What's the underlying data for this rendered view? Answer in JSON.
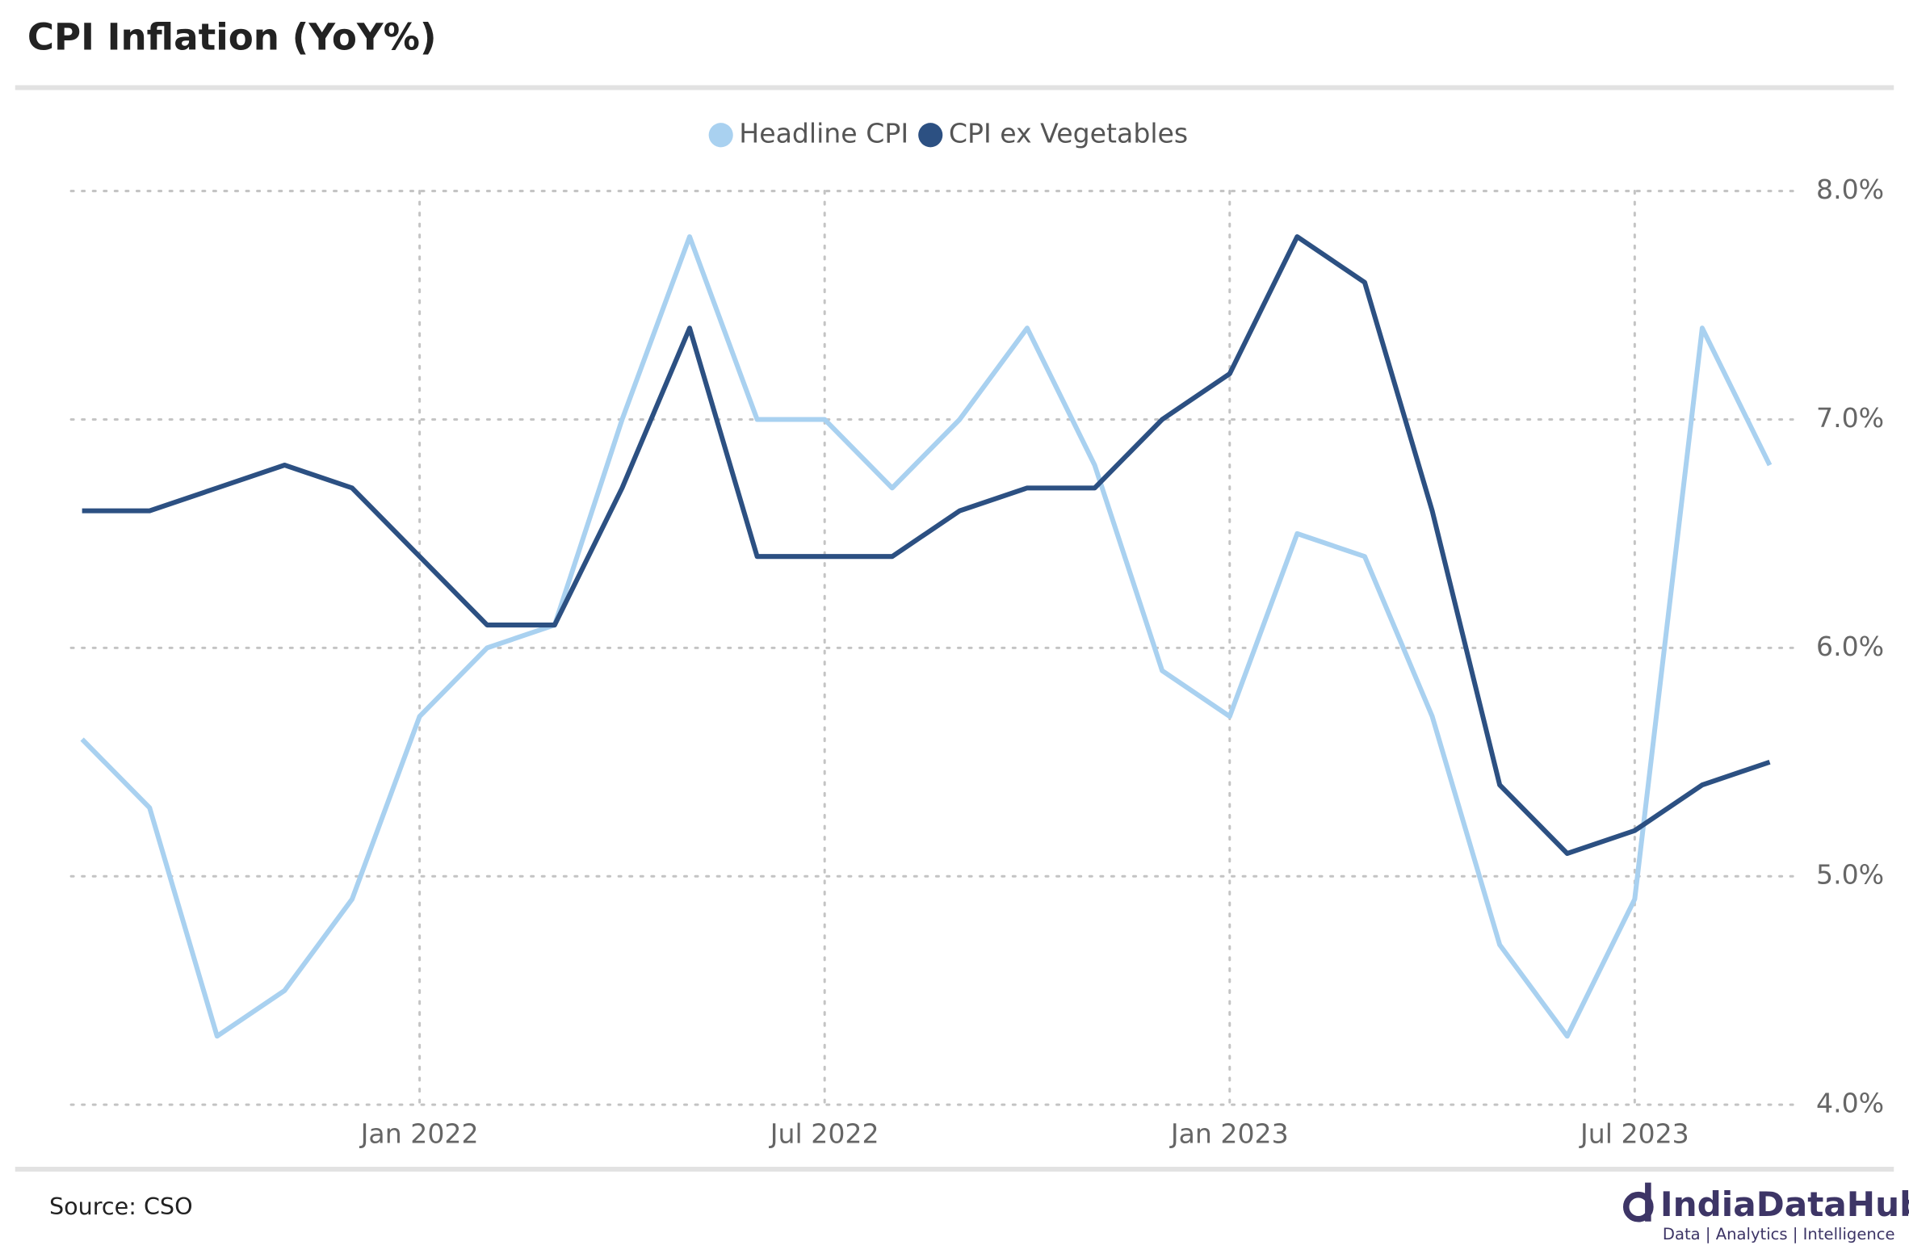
{
  "chart_data": {
    "type": "line",
    "title": "CPI Inflation (YoY%)",
    "source": "Source: CSO",
    "brand": "IndiaDataHub",
    "brand_tagline": "Data | Analytics | Intelligence",
    "x": [
      "2021-08",
      "2021-09",
      "2021-10",
      "2021-11",
      "2021-12",
      "2022-01",
      "2022-02",
      "2022-03",
      "2022-04",
      "2022-05",
      "2022-06",
      "2022-07",
      "2022-08",
      "2022-09",
      "2022-10",
      "2022-11",
      "2022-12",
      "2023-01",
      "2023-02",
      "2023-03",
      "2023-04",
      "2023-05",
      "2023-06",
      "2023-07",
      "2023-08",
      "2023-09"
    ],
    "series": [
      {
        "name": "Headline CPI",
        "color": "#a9d1f0",
        "values": [
          5.6,
          5.3,
          4.3,
          4.5,
          4.9,
          5.7,
          6.0,
          6.1,
          7.0,
          7.8,
          7.0,
          7.0,
          6.7,
          7.0,
          7.4,
          6.8,
          5.9,
          5.7,
          6.5,
          6.4,
          5.7,
          4.7,
          4.3,
          4.9,
          7.4,
          6.8
        ]
      },
      {
        "name": "CPI ex Vegetables",
        "color": "#2c5082",
        "values": [
          6.6,
          6.6,
          6.7,
          6.8,
          6.7,
          6.4,
          6.1,
          6.1,
          6.7,
          7.4,
          6.4,
          6.4,
          6.4,
          6.6,
          6.7,
          6.7,
          7.0,
          7.2,
          7.8,
          7.6,
          6.6,
          5.4,
          5.1,
          5.2,
          5.4,
          5.5
        ]
      }
    ],
    "xticks": [
      {
        "value": "2022-01",
        "label": "Jan 2022"
      },
      {
        "value": "2022-07",
        "label": "Jul 2022"
      },
      {
        "value": "2023-01",
        "label": "Jan 2023"
      },
      {
        "value": "2023-07",
        "label": "Jul 2023"
      }
    ],
    "ylim": [
      4,
      8
    ],
    "yticks": [
      {
        "value": 4,
        "label": "4.0%"
      },
      {
        "value": 5,
        "label": "5.0%"
      },
      {
        "value": 6,
        "label": "6.0%"
      },
      {
        "value": 7,
        "label": "7.0%"
      },
      {
        "value": 8,
        "label": "8.0%"
      }
    ],
    "grid": true,
    "legend": "top"
  }
}
